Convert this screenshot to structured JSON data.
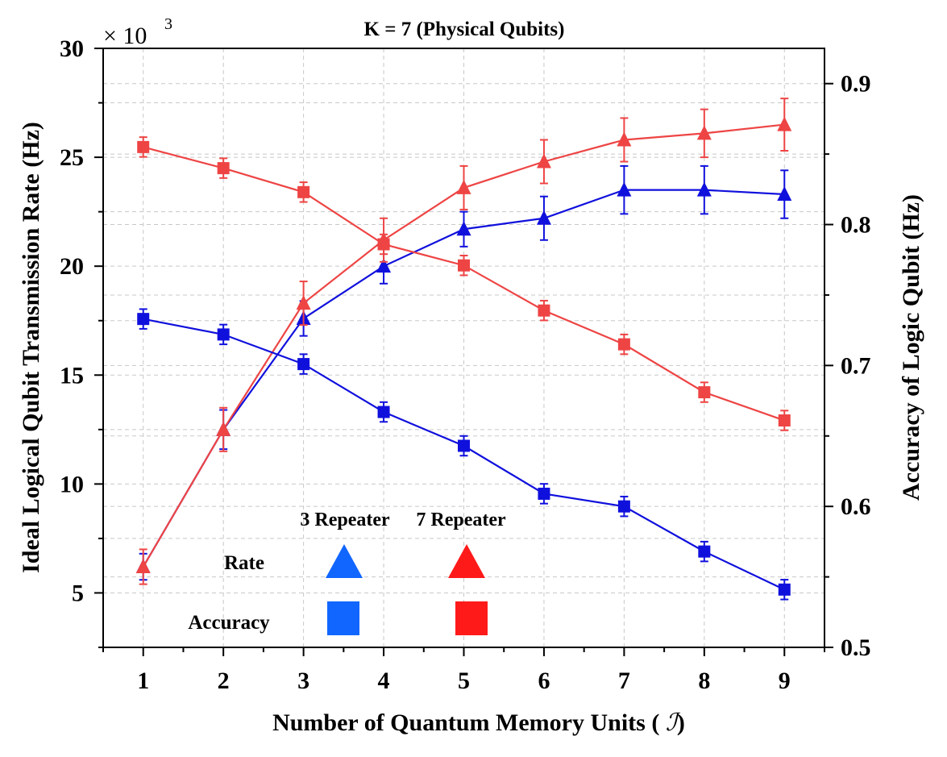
{
  "chart_data": {
    "type": "line",
    "title": "K = 7 (Physical Qubits)",
    "xlabel": "Number of Quantum Memory Units ( ",
    "xlabel_symbol": "ℐ",
    "xlabel_close": ")",
    "ylabel": "Ideal Logical Qubit Transmission Rate (Hz)",
    "y2label": "Accuracy of Logic Qubit (Hz)",
    "y_multiplier": "× 10",
    "y_multiplier_exp": "3",
    "xlim": [
      0.5,
      9.5
    ],
    "ylim": [
      2.5,
      30
    ],
    "y2lim": [
      0.5,
      0.925
    ],
    "x": [
      1,
      2,
      3,
      4,
      5,
      6,
      7,
      8,
      9
    ],
    "x_tick_labels": [
      "1",
      "2",
      "3",
      "4",
      "5",
      "6",
      "7",
      "8",
      "9"
    ],
    "y_tick_labels": [
      "5",
      "10",
      "15",
      "20",
      "25",
      "30"
    ],
    "y2_tick_labels": [
      "0.5",
      "0.6",
      "0.7",
      "0.8",
      "0.9"
    ],
    "series": [
      {
        "name": "Rate 3 Repeater",
        "axis": "left",
        "marker": "triangle",
        "color": "#1010dd",
        "values": [
          6.2,
          12.5,
          17.6,
          20.0,
          21.7,
          22.2,
          23.5,
          23.5,
          23.3
        ],
        "errors": [
          0.6,
          0.9,
          0.8,
          0.8,
          0.8,
          1.0,
          1.1,
          1.1,
          1.1
        ]
      },
      {
        "name": "Rate 7 Repeater",
        "axis": "left",
        "marker": "triangle",
        "color": "#ee4444",
        "values": [
          6.2,
          12.5,
          18.3,
          21.2,
          23.6,
          24.8,
          25.8,
          26.1,
          26.5
        ],
        "errors": [
          0.8,
          1.0,
          1.0,
          1.0,
          1.0,
          1.0,
          1.0,
          1.1,
          1.2
        ]
      },
      {
        "name": "Accuracy 3 Repeater",
        "axis": "right",
        "marker": "square",
        "color": "#1010dd",
        "values": [
          0.733,
          0.722,
          0.701,
          0.667,
          0.643,
          0.609,
          0.6,
          0.568,
          0.541
        ],
        "errors": [
          0.007,
          0.007,
          0.007,
          0.007,
          0.007,
          0.007,
          0.007,
          0.007,
          0.007
        ]
      },
      {
        "name": "Accuracy 7 Repeater",
        "axis": "right",
        "marker": "square",
        "color": "#ee4444",
        "values": [
          0.855,
          0.84,
          0.823,
          0.786,
          0.771,
          0.739,
          0.715,
          0.681,
          0.661
        ],
        "errors": [
          0.007,
          0.007,
          0.007,
          0.007,
          0.007,
          0.007,
          0.007,
          0.007,
          0.007
        ]
      }
    ],
    "legend": {
      "position": "bottom-left",
      "columns": [
        "3 Repeater",
        "7 Repeater"
      ],
      "rows": [
        "Rate",
        "Accuracy"
      ],
      "colors": [
        "#1166ff",
        "#ff1a1a"
      ]
    },
    "grid": true
  }
}
